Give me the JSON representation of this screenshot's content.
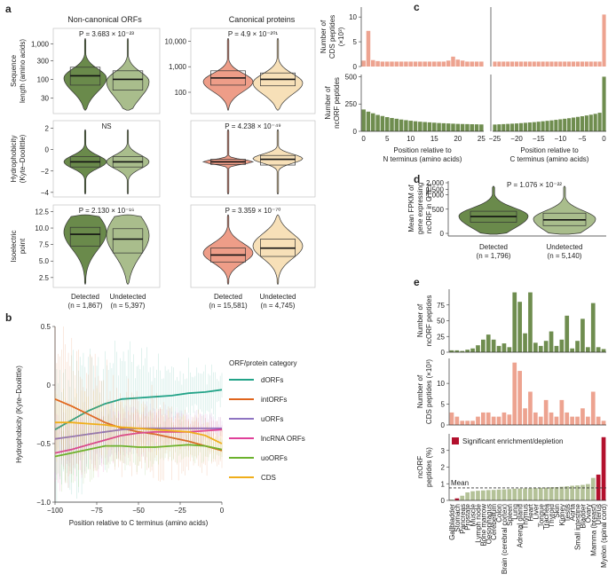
{
  "panel_labels": [
    "a",
    "b",
    "c",
    "d",
    "e"
  ],
  "colors": {
    "noncanon_det": "#6a8a4b",
    "noncanon_undet": "#a9bd8c",
    "canon_det": "#ee9d88",
    "canon_undet": "#f7e0b8",
    "bar_green": "#6f8d4f",
    "bar_pink": "#eda390",
    "e3_bar": "#b4c298",
    "sig": "#b3102d",
    "dORFs": "#22a388",
    "intORFs": "#e0641c",
    "uORFs": "#8e74c2",
    "lncRNA": "#e0409a",
    "uoORFs": "#6bb22d",
    "CDS": "#f0ae1a"
  },
  "chart_data": [
    {
      "id": "a",
      "type": "violin",
      "col_titles": [
        "Non-canonical ORFs",
        "Canonical proteins"
      ],
      "rows": [
        {
          "ylabel": [
            "Sequence",
            "length (amino acids)"
          ],
          "scale": "log",
          "ticks_left": [
            "1,000",
            "300",
            "100",
            "30"
          ],
          "ticks_right": [
            "10,000",
            "1,000",
            "100"
          ],
          "p_left": "P = 3.683 × 10⁻²³",
          "p_right": "P = 4.9 × 10⁻²⁰¹"
        },
        {
          "ylabel": [
            "Hydrophobicity",
            "(Kyte–Doolittle)"
          ],
          "scale": "linear",
          "ticks_left": [
            "2",
            "0",
            "−2",
            "−4"
          ],
          "ticks_right": [],
          "p_left": "NS",
          "p_right": "P = 4.238 × 10⁻⁴⁹"
        },
        {
          "ylabel": [
            "Isoelectric",
            "point"
          ],
          "scale": "linear",
          "ticks_left": [
            "12.5",
            "10.0",
            "7.5",
            "5.0",
            "2.5"
          ],
          "ticks_right": [],
          "p_left": "P = 2.130 × 10⁻¹⁶",
          "p_right": "P = 3.359 × 10⁻⁷⁰"
        }
      ],
      "groups_left": [
        "Detected",
        "Undetected"
      ],
      "n_left": [
        "(n = 1,867)",
        "(n = 5,397)"
      ],
      "groups_right": [
        "Detected",
        "Undetected"
      ],
      "n_right": [
        "(n = 15,581)",
        "(n = 4,745)"
      ]
    },
    {
      "id": "b",
      "type": "line",
      "ylabel": "Hydrophobicity (Kyte–Doolittle)",
      "xlabel": "Position relative to C terminus (amino acids)",
      "xlim": [
        -100,
        0
      ],
      "ylim": [
        -1.0,
        0.5
      ],
      "xticks": [
        "−100",
        "−75",
        "−50",
        "−25",
        "0"
      ],
      "yticks": [
        "0.5",
        "0",
        "−0.5",
        "−1.0"
      ],
      "legend_title": "ORF/protein category",
      "series": [
        {
          "name": "dORFs",
          "key": "dORFs",
          "points": [
            [
              -100,
              -0.38
            ],
            [
              -90,
              -0.3
            ],
            [
              -80,
              -0.22
            ],
            [
              -70,
              -0.16
            ],
            [
              -60,
              -0.12
            ],
            [
              -50,
              -0.11
            ],
            [
              -40,
              -0.1
            ],
            [
              -30,
              -0.09
            ],
            [
              -20,
              -0.07
            ],
            [
              -10,
              -0.06
            ],
            [
              0,
              -0.04
            ]
          ]
        },
        {
          "name": "intORFs",
          "key": "intORFs",
          "points": [
            [
              -100,
              -0.12
            ],
            [
              -90,
              -0.18
            ],
            [
              -80,
              -0.25
            ],
            [
              -70,
              -0.32
            ],
            [
              -60,
              -0.37
            ],
            [
              -50,
              -0.4
            ],
            [
              -40,
              -0.42
            ],
            [
              -30,
              -0.45
            ],
            [
              -20,
              -0.48
            ],
            [
              -10,
              -0.52
            ],
            [
              0,
              -0.56
            ]
          ]
        },
        {
          "name": "uORFs",
          "key": "uORFs",
          "points": [
            [
              -100,
              -0.46
            ],
            [
              -90,
              -0.44
            ],
            [
              -80,
              -0.42
            ],
            [
              -70,
              -0.4
            ],
            [
              -60,
              -0.38
            ],
            [
              -50,
              -0.37
            ],
            [
              -40,
              -0.37
            ],
            [
              -30,
              -0.37
            ],
            [
              -20,
              -0.37
            ],
            [
              -10,
              -0.37
            ],
            [
              0,
              -0.37
            ]
          ]
        },
        {
          "name": "lncRNA ORFs",
          "key": "lncRNA",
          "points": [
            [
              -100,
              -0.58
            ],
            [
              -90,
              -0.55
            ],
            [
              -80,
              -0.51
            ],
            [
              -70,
              -0.47
            ],
            [
              -60,
              -0.43
            ],
            [
              -50,
              -0.41
            ],
            [
              -40,
              -0.4
            ],
            [
              -30,
              -0.4
            ],
            [
              -20,
              -0.4
            ],
            [
              -10,
              -0.39
            ],
            [
              0,
              -0.38
            ]
          ]
        },
        {
          "name": "uoORFs",
          "key": "uoORFs",
          "points": [
            [
              -100,
              -0.61
            ],
            [
              -90,
              -0.58
            ],
            [
              -80,
              -0.55
            ],
            [
              -70,
              -0.52
            ],
            [
              -60,
              -0.52
            ],
            [
              -50,
              -0.53
            ],
            [
              -40,
              -0.53
            ],
            [
              -30,
              -0.52
            ],
            [
              -20,
              -0.51
            ],
            [
              -10,
              -0.52
            ],
            [
              0,
              -0.55
            ]
          ]
        },
        {
          "name": "CDS",
          "key": "CDS",
          "points": [
            [
              -100,
              -0.32
            ],
            [
              -90,
              -0.32
            ],
            [
              -80,
              -0.33
            ],
            [
              -70,
              -0.34
            ],
            [
              -60,
              -0.36
            ],
            [
              -50,
              -0.37
            ],
            [
              -40,
              -0.38
            ],
            [
              -30,
              -0.39
            ],
            [
              -20,
              -0.4
            ],
            [
              -10,
              -0.43
            ],
            [
              0,
              -0.5
            ]
          ]
        }
      ]
    },
    {
      "id": "c",
      "type": "bar",
      "top_ylabel": [
        "Number of",
        "CDS peptides",
        "(×10³)"
      ],
      "bottom_ylabel": [
        "Number of",
        "ncORF peptides"
      ],
      "top_yticks": [
        "10",
        "5",
        "0"
      ],
      "bottom_yticks": [
        "500",
        "250",
        "0"
      ],
      "top_ylim": [
        0,
        12
      ],
      "bottom_ylim": [
        0,
        520
      ],
      "left_xticks": [
        "0",
        "5",
        "10",
        "15",
        "20",
        "25"
      ],
      "right_xticks": [
        "−25",
        "−20",
        "−15",
        "−10",
        "−5",
        "0"
      ],
      "left_xlabel": [
        "Position relative to",
        "N terminus (amino acids)"
      ],
      "right_xlabel": [
        "Position relative to",
        "C terminus (amino acids)"
      ],
      "top_left": [
        1.2,
        7.2,
        1.3,
        1.1,
        1.0,
        1.0,
        1.0,
        1.0,
        1.0,
        1.0,
        1.0,
        1.0,
        1.0,
        1.0,
        1.0,
        1.0,
        1.0,
        1.0,
        1.2,
        2.0,
        1.4,
        1.2,
        1.0,
        1.0,
        1.0,
        1.0
      ],
      "top_right": [
        1.0,
        1.0,
        1.0,
        1.0,
        1.0,
        1.0,
        1.0,
        1.0,
        1.0,
        1.0,
        1.0,
        1.0,
        1.0,
        1.0,
        1.0,
        1.0,
        1.0,
        1.0,
        1.0,
        1.0,
        1.0,
        1.0,
        1.0,
        1.0,
        1.0,
        10.5
      ],
      "bottom_left": [
        200,
        180,
        165,
        150,
        140,
        130,
        122,
        115,
        108,
        102,
        97,
        92,
        88,
        85,
        82,
        79,
        76,
        74,
        72,
        70,
        68,
        67,
        66,
        65,
        64,
        63
      ],
      "bottom_right": [
        62,
        64,
        66,
        68,
        70,
        72,
        75,
        78,
        81,
        84,
        88,
        92,
        96,
        100,
        105,
        110,
        115,
        120,
        126,
        132,
        138,
        145,
        152,
        160,
        170,
        500
      ]
    },
    {
      "id": "d",
      "type": "violin",
      "ylabel": [
        "Mean FPKM of",
        "gene expressing",
        "ncORF in GTEx"
      ],
      "yticks": [
        "2,000",
        "1,500",
        "1,000",
        "500",
        "0"
      ],
      "p_value": "P = 1.076 × 10⁻²²",
      "groups": [
        "Detected",
        "Undetected"
      ],
      "n": [
        "(n = 1,796)",
        "(n = 5,140)"
      ]
    },
    {
      "id": "e",
      "type": "bar",
      "categories": [
        "Gallbladder",
        "Stomach",
        "Pancreas",
        "Prostate",
        "Muscle",
        "Lymph node",
        "Bone marrow",
        "Oesophagus",
        "Cerebellum",
        "Colon",
        "Brain (cerebral cortex)",
        "Spleen",
        "Lung",
        "Adrenal gland",
        "Thymus",
        "Heart",
        "Liver",
        "Tongue",
        "Trachea",
        "Thyroid",
        "Skin",
        "Kidney",
        "Testis",
        "Aorta",
        "Small intestine",
        "Bladder",
        "Ovary",
        "Mamma (breast)",
        "Uterus",
        "Myelon (spinal cord)"
      ],
      "top_ylabel": [
        "Number of",
        "ncORF peptides"
      ],
      "top_yticks": [
        "75",
        "50",
        "25",
        "0"
      ],
      "top_ylim": [
        0,
        100
      ],
      "top_values": [
        3,
        3,
        2,
        4,
        6,
        11,
        20,
        28,
        20,
        10,
        14,
        8,
        95,
        80,
        30,
        95,
        15,
        10,
        18,
        33,
        10,
        20,
        58,
        6,
        18,
        53,
        8,
        78,
        8,
        5
      ],
      "mid_ylabel": [
        "Number of",
        "CDS peptides (×10³)"
      ],
      "mid_yticks": [
        "10",
        "5",
        "0"
      ],
      "mid_ylim": [
        0,
        16
      ],
      "mid_values": [
        3,
        2,
        1,
        1,
        1,
        2,
        3,
        3,
        2,
        2,
        3,
        2.5,
        15,
        13,
        4,
        8,
        3,
        2,
        6,
        3,
        2,
        6,
        3,
        2,
        2,
        4,
        2,
        8,
        2,
        1
      ],
      "bottom_ylabel": [
        "ncORF",
        "peptides (%)"
      ],
      "bottom_yticks": [
        "3",
        "2",
        "1",
        "0"
      ],
      "bottom_ylim": [
        0,
        4
      ],
      "bottom_values": [
        0.05,
        0.12,
        0.28,
        0.48,
        0.55,
        0.58,
        0.6,
        0.62,
        0.63,
        0.65,
        0.66,
        0.68,
        0.7,
        0.71,
        0.72,
        0.73,
        0.74,
        0.76,
        0.77,
        0.79,
        0.8,
        0.82,
        0.85,
        0.88,
        0.9,
        0.93,
        0.98,
        1.35,
        1.55,
        3.8
      ],
      "significant": [
        1,
        28,
        29
      ],
      "mean_value": 0.75,
      "mean_label": "Mean",
      "legend_label": "Significant enrichment/depletion"
    }
  ]
}
